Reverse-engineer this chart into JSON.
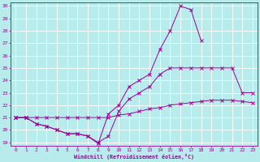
{
  "xlabel": "Windchill (Refroidissement éolien,°C)",
  "xlim": [
    0,
    23
  ],
  "ylim": [
    19,
    30
  ],
  "xticks": [
    0,
    1,
    2,
    3,
    4,
    5,
    6,
    7,
    8,
    9,
    10,
    11,
    12,
    13,
    14,
    15,
    16,
    17,
    18,
    19,
    20,
    21,
    22,
    23
  ],
  "yticks": [
    19,
    20,
    21,
    22,
    23,
    24,
    25,
    26,
    27,
    28,
    29,
    30
  ],
  "bg_color": "#b8ecec",
  "line_color": "#990099",
  "grid_color": "#d0f0f0",
  "line1_x": [
    0,
    1,
    2,
    3,
    4,
    5,
    6,
    7,
    8,
    9,
    10,
    11,
    12,
    13,
    14,
    15,
    16,
    17,
    18,
    19,
    20,
    21,
    22,
    23
  ],
  "line1_y": [
    21.0,
    21.0,
    21.0,
    21.0,
    21.0,
    21.0,
    21.0,
    21.0,
    21.0,
    21.0,
    21.2,
    21.3,
    21.5,
    21.7,
    21.8,
    22.0,
    22.1,
    22.2,
    22.3,
    22.4,
    22.4,
    22.4,
    22.3,
    22.2
  ],
  "line2_x": [
    0,
    1,
    2,
    3,
    4,
    5,
    6,
    7,
    8,
    9,
    10,
    11,
    12,
    13,
    14,
    15,
    16,
    17,
    18,
    19,
    20,
    21,
    22,
    23
  ],
  "line2_y": [
    21.0,
    21.0,
    20.5,
    20.3,
    20.0,
    19.7,
    19.7,
    19.5,
    19.0,
    19.5,
    21.5,
    22.5,
    23.0,
    23.5,
    24.5,
    25.0,
    25.0,
    25.0,
    25.0,
    25.0,
    25.0,
    25.0,
    23.0,
    23.0
  ],
  "line3_x": [
    0,
    1,
    2,
    3,
    4,
    5,
    6,
    7,
    8,
    9,
    10,
    11,
    12,
    13,
    14,
    15,
    16,
    17,
    18,
    19,
    20,
    21,
    22,
    23
  ],
  "line3_y": [
    21.0,
    21.0,
    20.5,
    20.3,
    20.0,
    19.7,
    19.7,
    19.5,
    18.9,
    21.3,
    22.0,
    23.5,
    24.0,
    24.5,
    26.5,
    28.0,
    30.0,
    29.7,
    27.2,
    null,
    null,
    null,
    null,
    null
  ]
}
